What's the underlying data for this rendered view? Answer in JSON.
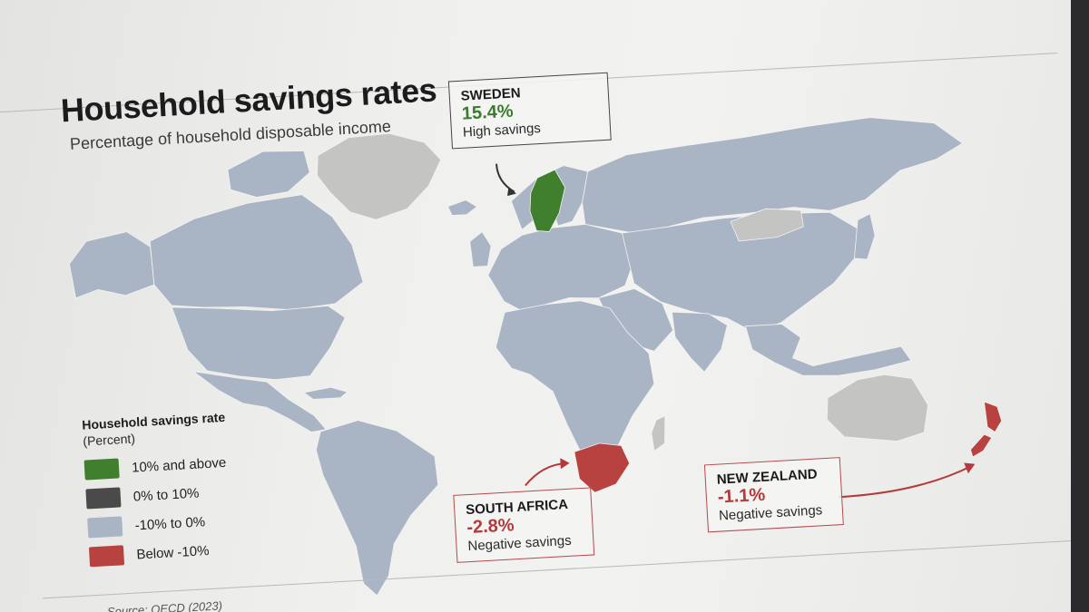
{
  "title": "Household savings rates",
  "subtitle": "Percentage of household disposable income",
  "callouts": {
    "sweden": {
      "name": "SWEDEN",
      "value": "15.4%",
      "note": "High savings"
    },
    "south_africa": {
      "name": "SOUTH AFRICA",
      "value": "-2.8%",
      "note": "Negative savings"
    },
    "new_zealand": {
      "name": "NEW ZEALAND",
      "value": "-1.1%",
      "note": "Negative savings"
    }
  },
  "legend": {
    "title": "Household savings rate",
    "subtitle": "(Percent)",
    "items": [
      {
        "label": "10% and above",
        "color": "#3f7f2e"
      },
      {
        "label": "0% to 10%",
        "color": "#4a4a4a"
      },
      {
        "label": "-10% to 0%",
        "color": "#a9b4c4"
      },
      {
        "label": "Below -10%",
        "color": "#b8423f"
      }
    ]
  },
  "map_colors": {
    "default": "#a9b4c4",
    "no_data": "#c4c4c2",
    "sweden": "#3f7f2e",
    "negative": "#b8423f"
  },
  "source": "Source: OECD (2023)"
}
